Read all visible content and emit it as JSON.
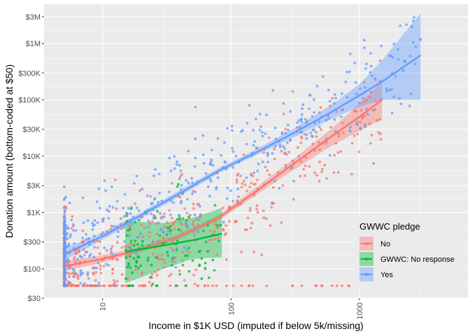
{
  "chart_data": {
    "type": "scatter",
    "title": "",
    "xlabel": "Income in $1K USD (imputed if below 5k/missing)",
    "ylabel": "Donation amount (bottom-coded at $50)",
    "x_scale": "log10",
    "y_scale": "log10",
    "xlim": [
      3.5,
      7000
    ],
    "ylim": [
      30,
      5000000
    ],
    "x_ticks": [
      10,
      100,
      1000
    ],
    "x_tick_labels": [
      "10",
      "100",
      "1000"
    ],
    "y_ticks": [
      30,
      100,
      300,
      1000,
      3000,
      10000,
      30000,
      100000,
      300000,
      1000000,
      3000000
    ],
    "y_tick_labels": [
      "$30",
      "$100",
      "$300",
      "$1K",
      "$3K",
      "$10K",
      "$30K",
      "$100K",
      "$300K",
      "$1M",
      "$3M"
    ],
    "grid": true,
    "legend": {
      "title": "GWWC pledge",
      "position": "right-bottom"
    },
    "series": [
      {
        "name": "No",
        "color": "#F8766D",
        "trend_x": [
          5,
          10,
          20,
          40,
          80,
          150,
          300,
          600,
          1000,
          1500
        ],
        "trend_y": [
          110,
          150,
          220,
          380,
          800,
          2200,
          7000,
          22000,
          50000,
          100000
        ],
        "band_low": [
          90,
          130,
          200,
          340,
          720,
          1900,
          5500,
          15000,
          28000,
          45000
        ],
        "band_high": [
          135,
          175,
          245,
          420,
          900,
          2600,
          8500,
          30000,
          85000,
          210000
        ]
      },
      {
        "name": "GWWC: No response",
        "color": "#00BA38",
        "trend_x": [
          15,
          30,
          50,
          85
        ],
        "trend_y": [
          200,
          260,
          320,
          420
        ],
        "band_low": [
          55,
          100,
          150,
          160
        ],
        "band_high": [
          700,
          650,
          800,
          1200
        ]
      },
      {
        "name": "Yes",
        "color": "#619CFF",
        "trend_x": [
          5,
          10,
          20,
          40,
          80,
          150,
          300,
          600,
          1000,
          1500,
          3000
        ],
        "trend_y": [
          180,
          380,
          900,
          2200,
          5500,
          11000,
          25000,
          60000,
          120000,
          210000,
          620000
        ],
        "band_low": [
          140,
          330,
          800,
          1950,
          5000,
          10000,
          21000,
          45000,
          75000,
          100000,
          100000
        ],
        "band_high": [
          230,
          440,
          1000,
          2500,
          6100,
          12500,
          30000,
          80000,
          190000,
          500000,
          3500000
        ]
      }
    ]
  }
}
